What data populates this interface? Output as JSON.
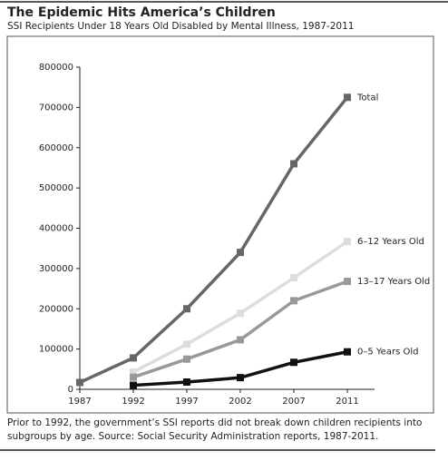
{
  "chart_data": {
    "type": "line",
    "title": "The Epidemic Hits America’s Children",
    "subtitle": "SSI Recipients Under 18 Years Old Disabled by Mental Illness, 1987-2011",
    "categories": [
      "1987",
      "1992",
      "1997",
      "2002",
      "2007",
      "2011"
    ],
    "series": [
      {
        "name": "Total",
        "color": "#666666",
        "values": [
          17000,
          78000,
          200000,
          340000,
          560000,
          725000
        ]
      },
      {
        "name": "6–12 Years Old",
        "color": "#dddddd",
        "values": [
          null,
          43000,
          112000,
          189000,
          277000,
          367000
        ]
      },
      {
        "name": "13–17 Years Old",
        "color": "#999999",
        "values": [
          null,
          30000,
          75000,
          123000,
          220000,
          268000
        ]
      },
      {
        "name": "0–5 Years Old",
        "color": "#111111",
        "values": [
          null,
          10000,
          18000,
          29000,
          67000,
          93000
        ]
      }
    ],
    "ylim": [
      0,
      800000
    ],
    "yticks": [
      0,
      100000,
      200000,
      300000,
      400000,
      500000,
      600000,
      700000,
      800000
    ],
    "note": "Prior to 1992, the government’s SSI reports did not break down children recipients into subgroups by age. Source: Social Security Administration reports, 1987-2011."
  }
}
